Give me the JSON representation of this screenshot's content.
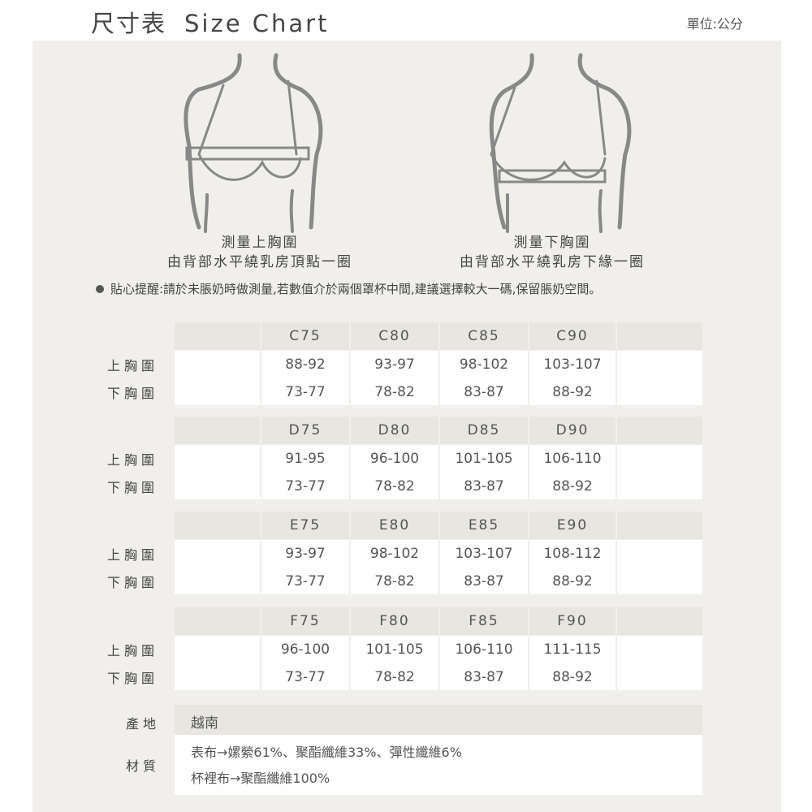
{
  "header": {
    "title_zh": "尺寸表",
    "title_en": "Size Chart",
    "unit": "單位:公分"
  },
  "illustrations": [
    {
      "caption1": "測量上胸圍",
      "caption2": "由背部水平繞乳房頂點一圈"
    },
    {
      "caption1": "測量下胸圍",
      "caption2": "由背部水平繞乳房下緣一圈"
    }
  ],
  "tip": "貼心提醒:請於未脹奶時做測量,若數值介於兩個罩杯中間,建議選擇較大一碼,保留脹奶空間。",
  "row_labels": {
    "upper": "上胸圍",
    "lower": "下胸圍"
  },
  "tables": [
    {
      "sizes": [
        "C75",
        "C80",
        "C85",
        "C90"
      ],
      "upper": [
        "88-92",
        "93-97",
        "98-102",
        "103-107"
      ],
      "lower": [
        "73-77",
        "78-82",
        "83-87",
        "88-92"
      ]
    },
    {
      "sizes": [
        "D75",
        "D80",
        "D85",
        "D90"
      ],
      "upper": [
        "91-95",
        "96-100",
        "101-105",
        "106-110"
      ],
      "lower": [
        "73-77",
        "78-82",
        "83-87",
        "88-92"
      ]
    },
    {
      "sizes": [
        "E75",
        "E80",
        "E85",
        "E90"
      ],
      "upper": [
        "93-97",
        "98-102",
        "103-107",
        "108-112"
      ],
      "lower": [
        "73-77",
        "78-82",
        "83-87",
        "88-92"
      ]
    },
    {
      "sizes": [
        "F75",
        "F80",
        "F85",
        "F90"
      ],
      "upper": [
        "96-100",
        "101-105",
        "106-110",
        "111-115"
      ],
      "lower": [
        "73-77",
        "78-82",
        "83-87",
        "88-92"
      ]
    }
  ],
  "info": {
    "origin_label": "產地",
    "origin": "越南",
    "material_label": "材質",
    "material1": "表布→嫘縈61%、聚酯纖維33%、彈性纖維6%",
    "material2": "杯裡布→聚酯纖維100%"
  }
}
